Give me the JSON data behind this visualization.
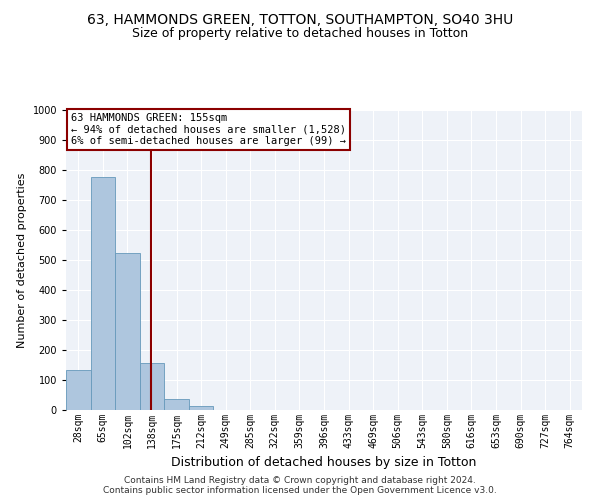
{
  "title": "63, HAMMONDS GREEN, TOTTON, SOUTHAMPTON, SO40 3HU",
  "subtitle": "Size of property relative to detached houses in Totton",
  "xlabel": "Distribution of detached houses by size in Totton",
  "ylabel": "Number of detached properties",
  "bin_labels": [
    "28sqm",
    "65sqm",
    "102sqm",
    "138sqm",
    "175sqm",
    "212sqm",
    "249sqm",
    "285sqm",
    "322sqm",
    "359sqm",
    "396sqm",
    "433sqm",
    "469sqm",
    "506sqm",
    "543sqm",
    "580sqm",
    "616sqm",
    "653sqm",
    "690sqm",
    "727sqm",
    "764sqm"
  ],
  "bar_heights": [
    133,
    778,
    524,
    158,
    37,
    14,
    0,
    0,
    0,
    0,
    0,
    0,
    0,
    0,
    0,
    0,
    0,
    0,
    0,
    0,
    0
  ],
  "bar_color": "#aec6de",
  "bar_edge_color": "#6699bb",
  "vline_color": "#8b0000",
  "ylim": [
    0,
    1000
  ],
  "yticks": [
    0,
    100,
    200,
    300,
    400,
    500,
    600,
    700,
    800,
    900,
    1000
  ],
  "annotation_text": "63 HAMMONDS GREEN: 155sqm\n← 94% of detached houses are smaller (1,528)\n6% of semi-detached houses are larger (99) →",
  "annotation_box_color": "#ffffff",
  "annotation_border_color": "#8b0000",
  "footer_line1": "Contains HM Land Registry data © Crown copyright and database right 2024.",
  "footer_line2": "Contains public sector information licensed under the Open Government Licence v3.0.",
  "background_color": "#eef2f8",
  "grid_color": "#ffffff",
  "title_fontsize": 10,
  "subtitle_fontsize": 9,
  "xlabel_fontsize": 9,
  "ylabel_fontsize": 8,
  "tick_fontsize": 7,
  "annotation_fontsize": 7.5,
  "footer_fontsize": 6.5
}
